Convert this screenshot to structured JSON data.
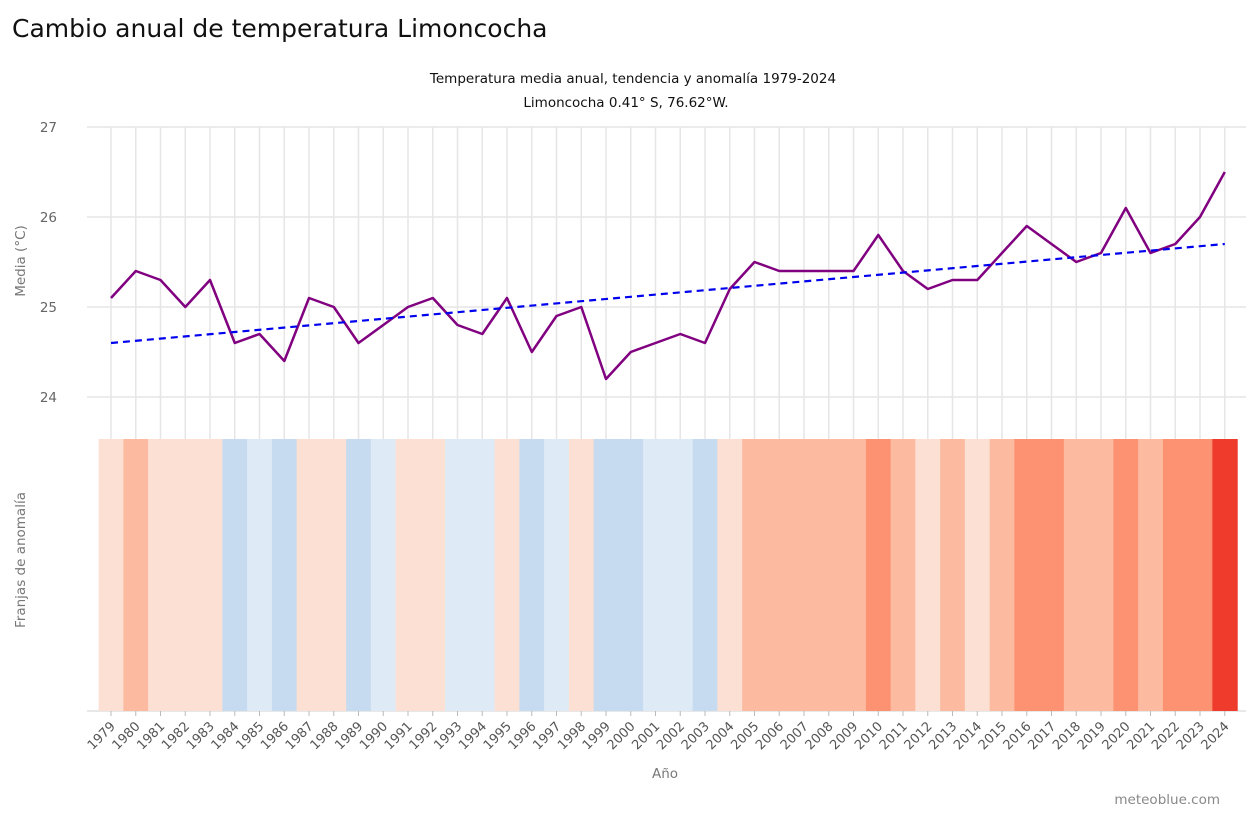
{
  "page": {
    "title": "Cambio anual de temperatura Limoncocha",
    "credit": "meteoblue.com"
  },
  "chart_data": {
    "type": "line",
    "subtitle_line1": "Temperatura media anual, tendencia y anomalía 1979-2024",
    "subtitle_line2": "Limoncocha 0.41° S, 76.62°W.",
    "ylabel": "Media (°C)",
    "stripes_label": "Franjas de anomalía",
    "xlabel": "Año",
    "ylim": [
      23.6,
      27
    ],
    "yticks": [
      24,
      25,
      26,
      27
    ],
    "grid": true,
    "x": [
      1979,
      1980,
      1981,
      1982,
      1983,
      1984,
      1985,
      1986,
      1987,
      1988,
      1989,
      1990,
      1991,
      1992,
      1993,
      1994,
      1995,
      1996,
      1997,
      1998,
      1999,
      2000,
      2001,
      2002,
      2003,
      2004,
      2005,
      2006,
      2007,
      2008,
      2009,
      2010,
      2011,
      2012,
      2013,
      2014,
      2015,
      2016,
      2017,
      2018,
      2019,
      2020,
      2021,
      2022,
      2023,
      2024
    ],
    "series": [
      {
        "values": [
          25.1,
          25.4,
          25.3,
          25.0,
          25.3,
          24.6,
          24.7,
          24.4,
          25.1,
          25.0,
          24.6,
          24.8,
          25.0,
          25.1,
          24.8,
          24.7,
          25.1,
          24.5,
          24.9,
          25.0,
          24.2,
          24.5,
          24.6,
          24.7,
          24.6,
          25.2,
          25.5,
          25.4,
          25.4,
          25.4,
          25.4,
          25.8,
          25.4,
          25.2,
          25.3,
          25.3,
          25.6,
          25.9,
          25.7,
          25.5,
          25.6,
          26.1,
          25.6,
          25.7,
          26.0,
          26.5
        ],
        "color": "#800080",
        "style": "solid"
      },
      {
        "values": [
          24.6,
          25.7
        ],
        "x": [
          1979,
          2024
        ],
        "color": "#0000ee",
        "style": "dashed"
      }
    ],
    "stripes": {
      "years": [
        1979,
        1980,
        1981,
        1982,
        1983,
        1984,
        1985,
        1986,
        1987,
        1988,
        1989,
        1990,
        1991,
        1992,
        1993,
        1994,
        1995,
        1996,
        1997,
        1998,
        1999,
        2000,
        2001,
        2002,
        2003,
        2004,
        2005,
        2006,
        2007,
        2008,
        2009,
        2010,
        2011,
        2012,
        2013,
        2014,
        2015,
        2016,
        2017,
        2018,
        2019,
        2020,
        2021,
        2022,
        2023,
        2024
      ],
      "colors": [
        "#fde0d4",
        "#fcbba1",
        "#fde0d4",
        "#fde0d4",
        "#fde0d4",
        "#c6dbef",
        "#deebf7",
        "#c6dbef",
        "#fde0d4",
        "#fde0d4",
        "#c6dbef",
        "#deebf7",
        "#fde0d4",
        "#fde0d4",
        "#deebf7",
        "#deebf7",
        "#fde0d4",
        "#c6dbef",
        "#deebf7",
        "#fde0d4",
        "#c6dbef",
        "#c6dbef",
        "#deebf7",
        "#deebf7",
        "#c6dbef",
        "#fde0d4",
        "#fcbba1",
        "#fcbba1",
        "#fcbba1",
        "#fcbba1",
        "#fcbba1",
        "#fc9272",
        "#fcbba1",
        "#fde0d4",
        "#fcbba1",
        "#fde0d4",
        "#fcbba1",
        "#fc9272",
        "#fc9272",
        "#fcbba1",
        "#fcbba1",
        "#fc9272",
        "#fcbba1",
        "#fc9272",
        "#fc9272",
        "#ef3b2c"
      ]
    }
  }
}
